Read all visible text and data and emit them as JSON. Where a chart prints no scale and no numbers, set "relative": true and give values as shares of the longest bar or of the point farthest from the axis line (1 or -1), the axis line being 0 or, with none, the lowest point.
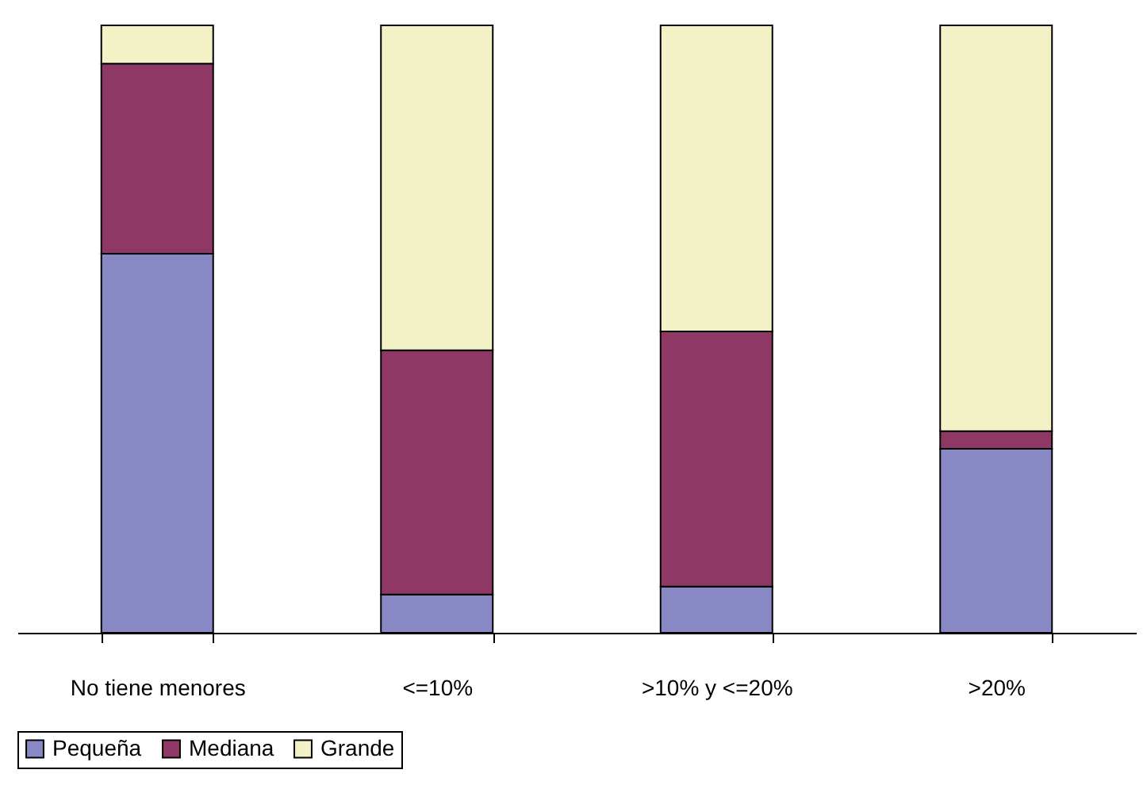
{
  "chart_data": {
    "type": "bar",
    "stacked": true,
    "relative": true,
    "legend": "bottom",
    "grid": false,
    "categories": [
      "No tiene menores",
      "<=10%",
      ">10% y <=20%",
      ">20%"
    ],
    "series": [
      {
        "name": "Pequeña",
        "color": "#8888c4",
        "values": [
          0.624,
          0.063,
          0.076,
          0.303
        ]
      },
      {
        "name": "Mediana",
        "color": "#8f3866",
        "values": [
          0.313,
          0.402,
          0.42,
          0.029
        ]
      },
      {
        "name": "Grande",
        "color": "#f2f2c6",
        "values": [
          0.063,
          0.535,
          0.504,
          0.668
        ]
      }
    ]
  }
}
